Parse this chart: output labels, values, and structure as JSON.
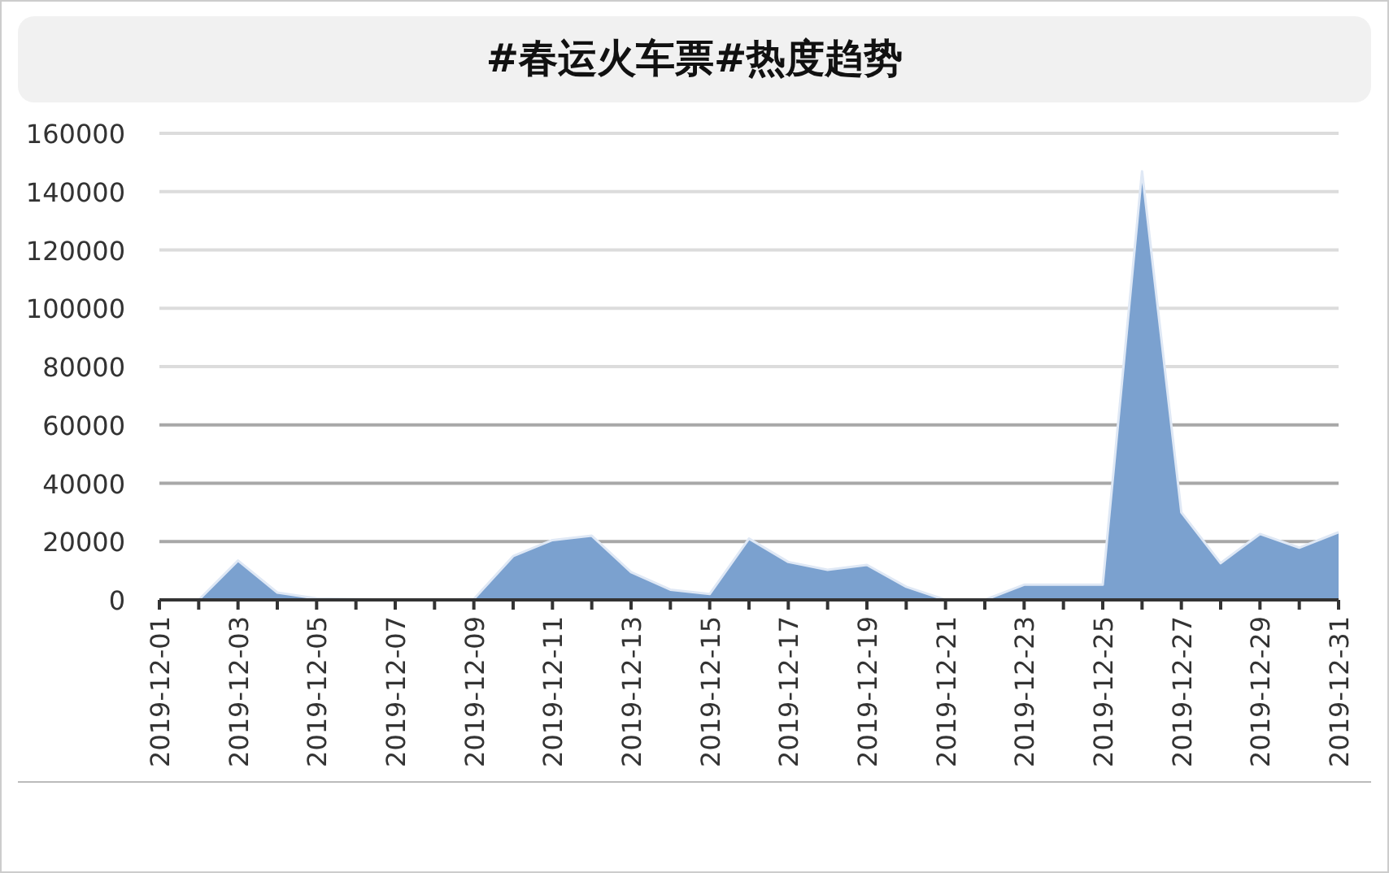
{
  "chart_data": {
    "type": "area",
    "title": "#春运火车票#热度趋势",
    "categories": [
      "2019-12-01",
      null,
      "2019-12-03",
      null,
      "2019-12-05",
      null,
      "2019-12-07",
      null,
      "2019-12-09",
      null,
      "2019-12-11",
      null,
      "2019-12-13",
      null,
      "2019-12-15",
      null,
      "2019-12-17",
      null,
      "2019-12-19",
      null,
      "2019-12-21",
      null,
      "2019-12-23",
      null,
      "2019-12-25",
      null,
      "2019-12-27",
      null,
      "2019-12-29",
      null,
      "2019-12-31"
    ],
    "series": [
      {
        "color": "#7ba1cf",
        "values": [
          0,
          0,
          13500,
          2500,
          500,
          300,
          0,
          0,
          300,
          15000,
          20500,
          22000,
          9500,
          3500,
          2000,
          21000,
          13000,
          10300,
          12000,
          4500,
          0,
          0,
          5200,
          5200,
          5200,
          147000,
          30000,
          12600,
          22600,
          17900,
          23200
        ]
      }
    ],
    "ylim": [
      0,
      160000
    ],
    "yticks": [
      0,
      20000,
      40000,
      60000,
      80000,
      100000,
      120000,
      140000,
      160000
    ],
    "grid": "y"
  }
}
